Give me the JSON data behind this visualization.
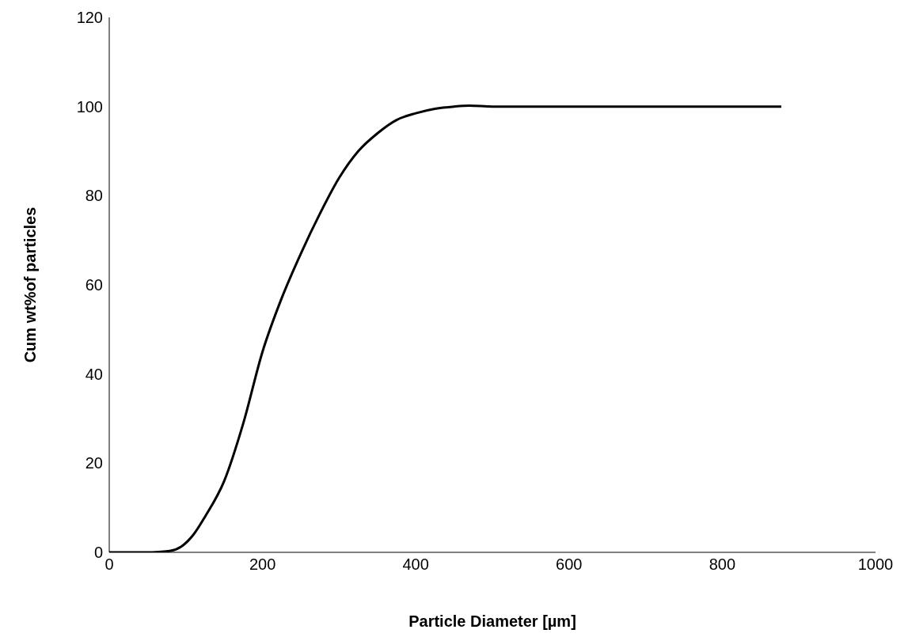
{
  "chart_data": {
    "type": "line",
    "xlabel": "Particle Diameter [µm]",
    "ylabel": "Cum wt%of particles",
    "series": [
      {
        "color": "#000000",
        "x": [
          0,
          20,
          47,
          65,
          79,
          94,
          110,
          125,
          150,
          175,
          200,
          225,
          250,
          275,
          300,
          325,
          350,
          375,
          400,
          425,
          450,
          470,
          500,
          600,
          700,
          800,
          877
        ],
        "values": [
          0,
          0,
          0,
          0.1,
          0.3,
          1.3,
          4,
          8,
          16,
          29,
          45,
          57,
          67,
          76,
          84,
          90,
          94,
          97,
          98.5,
          99.5,
          100,
          100.2,
          100,
          100,
          100,
          100,
          100
        ]
      }
    ],
    "xlim": [
      0,
      1000
    ],
    "xticks": [
      0,
      200,
      400,
      600,
      800,
      1000
    ],
    "ylim": [
      0,
      120
    ],
    "yticks": [
      0,
      20,
      40,
      60,
      80,
      100,
      120
    ]
  }
}
